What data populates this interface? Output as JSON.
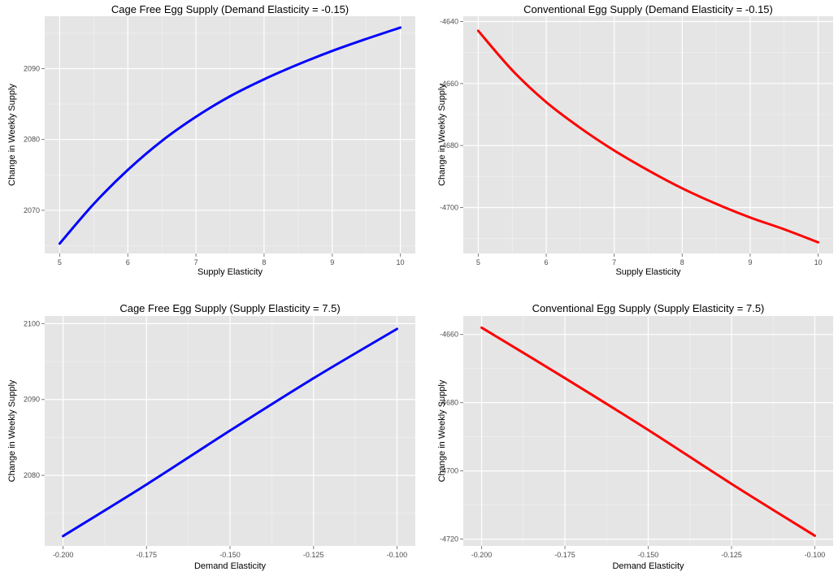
{
  "chart_data": [
    {
      "type": "line",
      "title": "Cage Free Egg Supply (Demand Elasticity = -0.15)",
      "xlabel": "Supply Elasticity",
      "ylabel": "Change in Weekly Supply",
      "xlim": [
        4.78,
        10.22
      ],
      "ylim": [
        2063.9,
        2097.4
      ],
      "xticks": [
        5,
        6,
        7,
        8,
        9,
        10
      ],
      "xtick_labels": [
        "5",
        "6",
        "7",
        "8",
        "9",
        "10"
      ],
      "yticks": [
        2070,
        2080,
        2090
      ],
      "ytick_labels": [
        "2070",
        "2080",
        "2090"
      ],
      "grid": true,
      "color": "#0000ff",
      "x": [
        5,
        5.5,
        6,
        6.5,
        7,
        7.5,
        8,
        8.5,
        9,
        9.5,
        10
      ],
      "y": [
        2065.3,
        2070.9,
        2075.7,
        2079.8,
        2083.2,
        2086.1,
        2088.5,
        2090.6,
        2092.5,
        2094.2,
        2095.8
      ]
    },
    {
      "type": "line",
      "title": "Conventional Egg Supply (Demand Elasticity = -0.15)",
      "xlabel": "Supply Elasticity",
      "ylabel": "Change in Weekly Supply",
      "xlim": [
        4.78,
        10.22
      ],
      "ylim": [
        -4714.8,
        -4638.3
      ],
      "xticks": [
        5,
        6,
        7,
        8,
        9,
        10
      ],
      "xtick_labels": [
        "5",
        "6",
        "7",
        "8",
        "9",
        "10"
      ],
      "yticks": [
        -4700,
        -4680,
        -4660,
        -4640
      ],
      "ytick_labels": [
        "-4700",
        "-4680",
        "-4660",
        "-4640"
      ],
      "grid": true,
      "color": "#ff0000",
      "x": [
        5,
        5.5,
        6,
        6.5,
        7,
        7.5,
        8,
        8.5,
        9,
        9.5,
        10
      ],
      "y": [
        -4643.0,
        -4655.7,
        -4666.0,
        -4674.3,
        -4681.6,
        -4688.0,
        -4693.8,
        -4698.8,
        -4703.2,
        -4707.0,
        -4711.2
      ]
    },
    {
      "type": "line",
      "title": "Cage Free Egg Supply (Supply Elasticity = 7.5)",
      "xlabel": "Demand Elasticity",
      "ylabel": "Change in Weekly Supply",
      "xlim": [
        -0.2055,
        -0.0945
      ],
      "ylim": [
        2070.7,
        2101.0
      ],
      "xticks": [
        -0.2,
        -0.175,
        -0.15,
        -0.125,
        -0.1
      ],
      "xtick_labels": [
        "-0.200",
        "-0.175",
        "-0.150",
        "-0.125",
        "-0.100"
      ],
      "yticks": [
        2080,
        2090,
        2100
      ],
      "ytick_labels": [
        "2080",
        "2090",
        "2100"
      ],
      "grid": true,
      "color": "#0000ff",
      "x": [
        -0.2,
        -0.175,
        -0.15,
        -0.125,
        -0.1
      ],
      "y": [
        2072.0,
        2078.8,
        2085.9,
        2092.8,
        2099.3
      ]
    },
    {
      "type": "line",
      "title": "Conventional Egg Supply (Supply Elasticity = 7.5)",
      "xlabel": "Demand Elasticity",
      "ylabel": "Change in Weekly Supply",
      "xlim": [
        -0.2055,
        -0.0945
      ],
      "ylim": [
        -4722.0,
        -4654.6
      ],
      "xticks": [
        -0.2,
        -0.175,
        -0.15,
        -0.125,
        -0.1
      ],
      "xtick_labels": [
        "-0.200",
        "-0.175",
        "-0.150",
        "-0.125",
        "-0.100"
      ],
      "yticks": [
        -4720,
        -4700,
        -4680,
        -4660
      ],
      "ytick_labels": [
        "-4720",
        "-4700",
        "-4680",
        "-4660"
      ],
      "grid": true,
      "color": "#ff0000",
      "x": [
        -0.2,
        -0.175,
        -0.15,
        -0.125,
        -0.1
      ],
      "y": [
        -4658.0,
        -4672.8,
        -4688.0,
        -4703.8,
        -4719.0
      ]
    }
  ]
}
